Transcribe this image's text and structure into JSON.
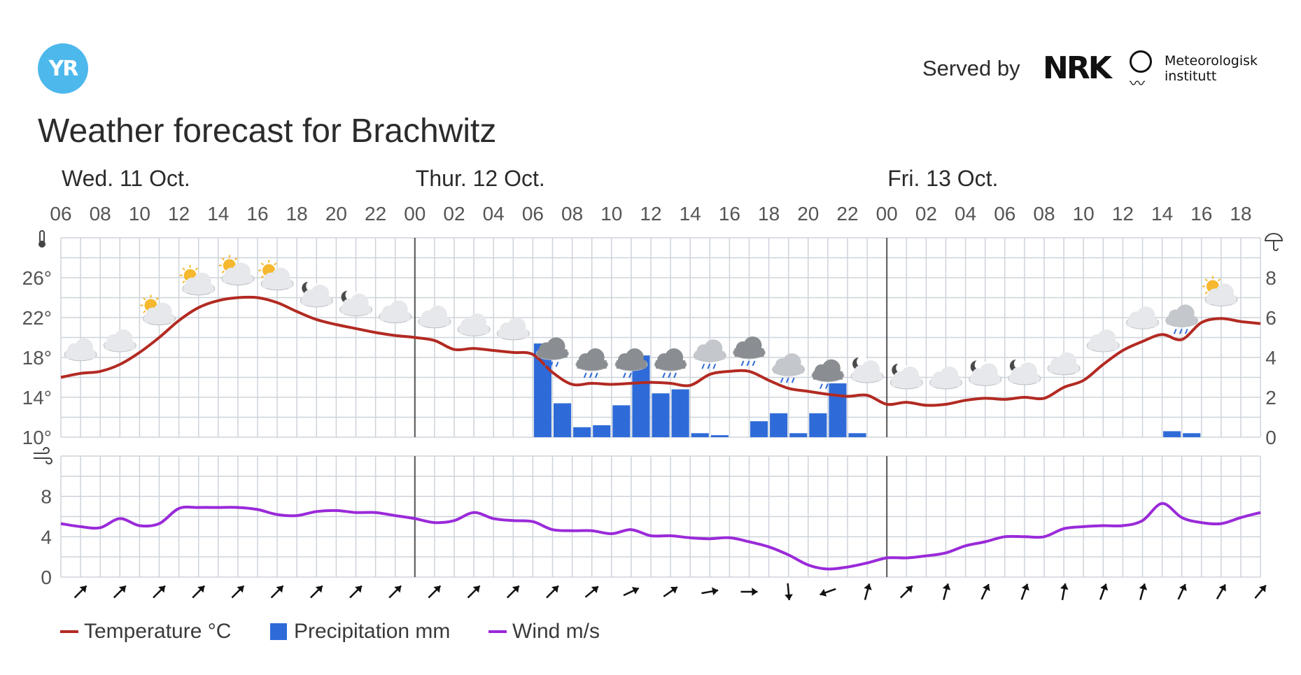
{
  "header": {
    "logo_text": "YR",
    "served_by": "Served by",
    "nrk_logo_text": "NRK",
    "met_line1": "Meteorologisk",
    "met_line2": "institutt",
    "title": "Weather forecast for Brachwitz"
  },
  "colors": {
    "temperature": "#b22a22",
    "precipitation": "#2f6bd8",
    "wind": "#9a2ad9",
    "grid": "#cdd3da",
    "day_divider": "#555555"
  },
  "legend": {
    "temperature": "Temperature °C",
    "precipitation": "Precipitation mm",
    "wind": "Wind m/s"
  },
  "chart_data": {
    "type": "line",
    "days": [
      {
        "label": "Wed. 11 Oct.",
        "start_hour": 6
      },
      {
        "label": "Thur. 12 Oct.",
        "start_hour": 24
      },
      {
        "label": "Fri. 13 Oct.",
        "start_hour": 48
      }
    ],
    "x_ticks": [
      "06",
      "08",
      "10",
      "12",
      "14",
      "16",
      "18",
      "20",
      "22",
      "00",
      "02",
      "04",
      "06",
      "08",
      "10",
      "12",
      "14",
      "16",
      "18",
      "20",
      "22",
      "00",
      "02",
      "04",
      "06",
      "08",
      "10",
      "12",
      "14",
      "16",
      "18"
    ],
    "x_range_hours": [
      6,
      67
    ],
    "temperature": {
      "name": "Temperature °C",
      "ylim": [
        10,
        30
      ],
      "y_ticks": [
        "10°",
        "14°",
        "18°",
        "22°",
        "26°"
      ],
      "hours": [
        6,
        7,
        8,
        9,
        10,
        11,
        12,
        13,
        14,
        15,
        16,
        17,
        18,
        19,
        20,
        21,
        22,
        23,
        24,
        25,
        26,
        27,
        28,
        29,
        30,
        31,
        32,
        33,
        34,
        35,
        36,
        37,
        38,
        39,
        40,
        41,
        42,
        43,
        44,
        45,
        46,
        47,
        48,
        49,
        50,
        51,
        52,
        53,
        54,
        55,
        56,
        57,
        58,
        59,
        60,
        61,
        62,
        63,
        64,
        65,
        66,
        67
      ],
      "values": [
        16.0,
        16.4,
        16.6,
        17.3,
        18.5,
        20.0,
        21.7,
        23.0,
        23.7,
        24.0,
        24.0,
        23.5,
        22.6,
        21.8,
        21.3,
        20.9,
        20.5,
        20.2,
        20.0,
        19.7,
        18.8,
        18.9,
        18.7,
        18.5,
        18.3,
        16.5,
        15.3,
        15.4,
        15.3,
        15.4,
        15.5,
        15.4,
        15.2,
        16.3,
        16.6,
        16.6,
        15.7,
        14.9,
        14.6,
        14.3,
        14.1,
        14.2,
        13.3,
        13.5,
        13.2,
        13.3,
        13.7,
        13.9,
        13.8,
        14.0,
        13.9,
        15.0,
        15.7,
        17.3,
        18.7,
        19.6,
        20.3,
        19.8,
        21.5,
        21.9,
        21.6,
        21.4
      ]
    },
    "precipitation": {
      "name": "Precipitation mm",
      "ylim": [
        0,
        10
      ],
      "y_ticks": [
        "0",
        "2",
        "4",
        "6",
        "8"
      ],
      "bars": [
        {
          "hour": 30,
          "value": 4.7
        },
        {
          "hour": 31,
          "value": 1.7
        },
        {
          "hour": 32,
          "value": 0.5
        },
        {
          "hour": 33,
          "value": 0.6
        },
        {
          "hour": 34,
          "value": 1.6
        },
        {
          "hour": 35,
          "value": 4.1
        },
        {
          "hour": 36,
          "value": 2.2
        },
        {
          "hour": 37,
          "value": 2.4
        },
        {
          "hour": 38,
          "value": 0.2
        },
        {
          "hour": 39,
          "value": 0.1
        },
        {
          "hour": 41,
          "value": 0.8
        },
        {
          "hour": 42,
          "value": 1.2
        },
        {
          "hour": 43,
          "value": 0.2
        },
        {
          "hour": 44,
          "value": 1.2
        },
        {
          "hour": 45,
          "value": 2.7
        },
        {
          "hour": 46,
          "value": 0.2
        },
        {
          "hour": 62,
          "value": 0.3
        },
        {
          "hour": 63,
          "value": 0.2
        }
      ]
    },
    "wind": {
      "name": "Wind m/s",
      "ylim": [
        0,
        12
      ],
      "y_ticks": [
        "0",
        "4",
        "8"
      ],
      "hours": [
        6,
        7,
        8,
        9,
        10,
        11,
        12,
        13,
        14,
        15,
        16,
        17,
        18,
        19,
        20,
        21,
        22,
        23,
        24,
        25,
        26,
        27,
        28,
        29,
        30,
        31,
        32,
        33,
        34,
        35,
        36,
        37,
        38,
        39,
        40,
        41,
        42,
        43,
        44,
        45,
        46,
        47,
        48,
        49,
        50,
        51,
        52,
        53,
        54,
        55,
        56,
        57,
        58,
        59,
        60,
        61,
        62,
        63,
        64,
        65,
        66,
        67
      ],
      "values": [
        5.3,
        5.0,
        4.9,
        5.8,
        5.1,
        5.3,
        6.8,
        6.9,
        6.9,
        6.9,
        6.7,
        6.2,
        6.1,
        6.5,
        6.6,
        6.4,
        6.4,
        6.1,
        5.8,
        5.4,
        5.6,
        6.4,
        5.8,
        5.6,
        5.5,
        4.7,
        4.6,
        4.6,
        4.3,
        4.7,
        4.1,
        4.1,
        3.9,
        3.8,
        3.9,
        3.5,
        3.0,
        2.2,
        1.2,
        0.8,
        1.0,
        1.4,
        1.9,
        1.9,
        2.1,
        2.4,
        3.1,
        3.5,
        4.0,
        4.0,
        4.0,
        4.8,
        5.0,
        5.1,
        5.1,
        5.6,
        7.3,
        5.9,
        5.4,
        5.3,
        5.9,
        6.4
      ]
    },
    "weather_symbols": [
      {
        "hour": 7,
        "symbol": "cloudy"
      },
      {
        "hour": 9,
        "symbol": "cloudy"
      },
      {
        "hour": 11,
        "symbol": "partly-cloudy-day"
      },
      {
        "hour": 13,
        "symbol": "partly-cloudy-day"
      },
      {
        "hour": 15,
        "symbol": "partly-cloudy-day"
      },
      {
        "hour": 17,
        "symbol": "partly-cloudy-day"
      },
      {
        "hour": 19,
        "symbol": "partly-cloudy-night"
      },
      {
        "hour": 21,
        "symbol": "partly-cloudy-night"
      },
      {
        "hour": 23,
        "symbol": "cloudy"
      },
      {
        "hour": 25,
        "symbol": "cloudy"
      },
      {
        "hour": 27,
        "symbol": "cloudy"
      },
      {
        "hour": 29,
        "symbol": "cloudy"
      },
      {
        "hour": 31,
        "symbol": "rain"
      },
      {
        "hour": 33,
        "symbol": "rain"
      },
      {
        "hour": 35,
        "symbol": "rain"
      },
      {
        "hour": 37,
        "symbol": "rain"
      },
      {
        "hour": 39,
        "symbol": "light-rain"
      },
      {
        "hour": 41,
        "symbol": "rain"
      },
      {
        "hour": 43,
        "symbol": "light-rain"
      },
      {
        "hour": 45,
        "symbol": "rain"
      },
      {
        "hour": 47,
        "symbol": "partly-cloudy-night"
      },
      {
        "hour": 49,
        "symbol": "partly-cloudy-night"
      },
      {
        "hour": 51,
        "symbol": "cloudy"
      },
      {
        "hour": 53,
        "symbol": "partly-cloudy-night"
      },
      {
        "hour": 55,
        "symbol": "partly-cloudy-night"
      },
      {
        "hour": 57,
        "symbol": "cloudy"
      },
      {
        "hour": 59,
        "symbol": "cloudy"
      },
      {
        "hour": 61,
        "symbol": "cloudy"
      },
      {
        "hour": 63,
        "symbol": "light-rain"
      },
      {
        "hour": 65,
        "symbol": "partly-cloudy-day"
      }
    ],
    "wind_directions": [
      {
        "hour": 7,
        "to_deg": 45
      },
      {
        "hour": 9,
        "to_deg": 45
      },
      {
        "hour": 11,
        "to_deg": 45
      },
      {
        "hour": 13,
        "to_deg": 45
      },
      {
        "hour": 15,
        "to_deg": 45
      },
      {
        "hour": 17,
        "to_deg": 45
      },
      {
        "hour": 19,
        "to_deg": 45
      },
      {
        "hour": 21,
        "to_deg": 45
      },
      {
        "hour": 23,
        "to_deg": 45
      },
      {
        "hour": 25,
        "to_deg": 45
      },
      {
        "hour": 27,
        "to_deg": 45
      },
      {
        "hour": 29,
        "to_deg": 45
      },
      {
        "hour": 31,
        "to_deg": 45
      },
      {
        "hour": 33,
        "to_deg": 50
      },
      {
        "hour": 35,
        "to_deg": 65
      },
      {
        "hour": 37,
        "to_deg": 55
      },
      {
        "hour": 39,
        "to_deg": 80
      },
      {
        "hour": 41,
        "to_deg": 90
      },
      {
        "hour": 43,
        "to_deg": 175
      },
      {
        "hour": 45,
        "to_deg": 250
      },
      {
        "hour": 47,
        "to_deg": 15
      },
      {
        "hour": 49,
        "to_deg": 45
      },
      {
        "hour": 51,
        "to_deg": 15
      },
      {
        "hour": 53,
        "to_deg": 25
      },
      {
        "hour": 55,
        "to_deg": 20
      },
      {
        "hour": 57,
        "to_deg": 10
      },
      {
        "hour": 59,
        "to_deg": 20
      },
      {
        "hour": 61,
        "to_deg": 15
      },
      {
        "hour": 63,
        "to_deg": 25
      },
      {
        "hour": 65,
        "to_deg": 30
      },
      {
        "hour": 67,
        "to_deg": 40
      }
    ]
  }
}
